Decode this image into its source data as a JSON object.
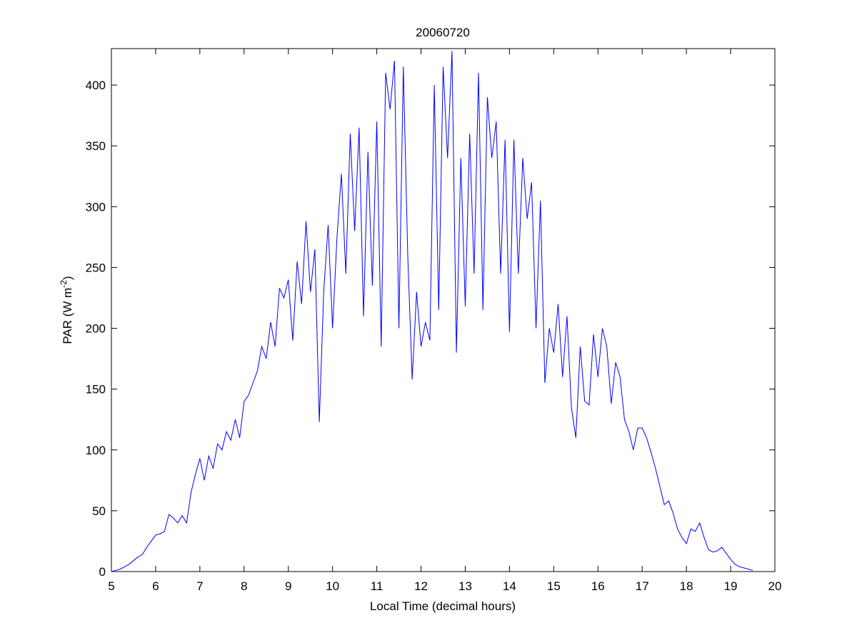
{
  "chart_data": {
    "type": "line",
    "title": "20060720",
    "xlabel": "Local Time (decimal hours)",
    "ylabel": "PAR (W m",
    "ylabel_sup": "-2",
    "ylabel_end": ")",
    "color": "#0000ff",
    "xlim": [
      5,
      20
    ],
    "ylim": [
      0,
      430
    ],
    "xticks": [
      5,
      6,
      7,
      8,
      9,
      10,
      11,
      12,
      13,
      14,
      15,
      16,
      17,
      18,
      19,
      20
    ],
    "yticks": [
      0,
      50,
      100,
      150,
      200,
      250,
      300,
      350,
      400
    ],
    "x": [
      5.0,
      5.1,
      5.2,
      5.3,
      5.4,
      5.5,
      5.6,
      5.7,
      5.8,
      5.9,
      6.0,
      6.1,
      6.2,
      6.3,
      6.4,
      6.5,
      6.6,
      6.7,
      6.8,
      6.9,
      7.0,
      7.1,
      7.2,
      7.3,
      7.4,
      7.5,
      7.6,
      7.7,
      7.8,
      7.9,
      8.0,
      8.1,
      8.2,
      8.3,
      8.4,
      8.5,
      8.6,
      8.7,
      8.8,
      8.9,
      9.0,
      9.1,
      9.2,
      9.3,
      9.4,
      9.5,
      9.6,
      9.7,
      9.8,
      9.9,
      10.0,
      10.1,
      10.2,
      10.3,
      10.4,
      10.5,
      10.6,
      10.7,
      10.8,
      10.9,
      11.0,
      11.1,
      11.2,
      11.3,
      11.4,
      11.5,
      11.6,
      11.7,
      11.8,
      11.9,
      12.0,
      12.1,
      12.2,
      12.3,
      12.4,
      12.5,
      12.6,
      12.7,
      12.8,
      12.9,
      13.0,
      13.1,
      13.2,
      13.3,
      13.4,
      13.5,
      13.6,
      13.7,
      13.8,
      13.9,
      14.0,
      14.1,
      14.2,
      14.3,
      14.4,
      14.5,
      14.6,
      14.7,
      14.8,
      14.9,
      15.0,
      15.1,
      15.2,
      15.3,
      15.4,
      15.5,
      15.6,
      15.7,
      15.8,
      15.9,
      16.0,
      16.1,
      16.2,
      16.3,
      16.4,
      16.5,
      16.6,
      16.7,
      16.8,
      16.9,
      17.0,
      17.1,
      17.2,
      17.3,
      17.4,
      17.5,
      17.6,
      17.7,
      17.8,
      17.9,
      18.0,
      18.1,
      18.2,
      18.3,
      18.4,
      18.5,
      18.6,
      18.7,
      18.8,
      18.9,
      19.0,
      19.1,
      19.2,
      19.3,
      19.4,
      19.5
    ],
    "values": [
      0,
      1,
      2,
      4,
      6,
      9,
      12,
      14,
      20,
      25,
      30,
      31,
      33,
      47,
      44,
      40,
      46,
      40,
      65,
      80,
      93,
      75,
      95,
      85,
      105,
      100,
      115,
      108,
      125,
      110,
      140,
      145,
      155,
      165,
      185,
      175,
      205,
      185,
      233,
      225,
      240,
      190,
      255,
      220,
      288,
      230,
      265,
      123,
      230,
      285,
      200,
      275,
      327,
      245,
      360,
      280,
      365,
      210,
      345,
      235,
      370,
      185,
      410,
      380,
      420,
      200,
      415,
      260,
      158,
      230,
      185,
      205,
      190,
      400,
      215,
      415,
      340,
      428,
      180,
      340,
      218,
      360,
      245,
      410,
      215,
      390,
      340,
      370,
      245,
      355,
      197,
      355,
      245,
      340,
      290,
      320,
      200,
      305,
      155,
      200,
      180,
      220,
      160,
      210,
      135,
      110,
      185,
      140,
      137,
      195,
      160,
      200,
      185,
      138,
      172,
      160,
      125,
      115,
      100,
      118,
      118,
      110,
      98,
      85,
      70,
      55,
      58,
      48,
      35,
      28,
      23,
      35,
      33,
      40,
      28,
      18,
      16,
      17,
      20,
      15,
      10,
      6,
      4,
      3,
      2,
      1
    ]
  }
}
